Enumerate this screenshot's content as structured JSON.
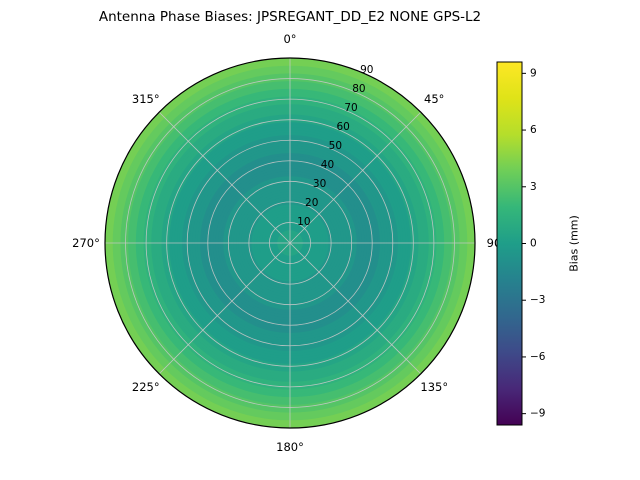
{
  "title": "Antenna Phase Biases: JPSREGANT_DD_E2 NONE GPS-L2",
  "colors": {
    "background": "#ffffff",
    "grid_line": "#c8c8c8",
    "outline": "#000000",
    "text": "#000000"
  },
  "chart_data": {
    "type": "heatmap",
    "subtype": "polar-filled-contour",
    "title": "Antenna Phase Biases: JPSREGANT_DD_E2 NONE GPS-L2",
    "angular_ticks": [
      {
        "deg": 0,
        "label": "0°"
      },
      {
        "deg": 45,
        "label": "45°"
      },
      {
        "deg": 90,
        "label": "90"
      },
      {
        "deg": 135,
        "label": "135°"
      },
      {
        "deg": 180,
        "label": "180°"
      },
      {
        "deg": 225,
        "label": "225°"
      },
      {
        "deg": 270,
        "label": "270°"
      },
      {
        "deg": 315,
        "label": "315°"
      }
    ],
    "radial_ticks": {
      "values": [
        10,
        20,
        30,
        40,
        50,
        60,
        70,
        80,
        90
      ],
      "labels": [
        "10",
        "20",
        "30",
        "40",
        "50",
        "60",
        "70",
        "80",
        "90"
      ],
      "azimuth_deg": 22.5,
      "max": 90
    },
    "grid": true,
    "legend_position": "right-colorbar",
    "colormap": "viridis",
    "colormap_stops": [
      [
        0.0,
        "#440154"
      ],
      [
        0.1,
        "#482878"
      ],
      [
        0.2,
        "#3e4a89"
      ],
      [
        0.3,
        "#31688e"
      ],
      [
        0.4,
        "#26828e"
      ],
      [
        0.5,
        "#1f9e89"
      ],
      [
        0.6,
        "#35b779"
      ],
      [
        0.7,
        "#6ece58"
      ],
      [
        0.8,
        "#b5de2b"
      ],
      [
        0.9,
        "#dfe318"
      ],
      [
        1.0,
        "#fde725"
      ]
    ],
    "colorbar": {
      "label": "Bias (mm)",
      "tick_values": [
        9,
        6,
        3,
        0,
        -3,
        -6,
        -9
      ],
      "tick_labels": [
        "9",
        "6",
        "3",
        "0",
        "−3",
        "−6",
        "−9"
      ],
      "vmin": -9.6,
      "vmax": 9.6
    },
    "bias_profile": {
      "zenith_deg": [
        0,
        10,
        20,
        30,
        40,
        50,
        60,
        70,
        80,
        90
      ],
      "bias_mm": [
        0.5,
        0.1,
        -0.3,
        -0.7,
        -0.9,
        -0.5,
        0.4,
        1.6,
        3.0,
        4.3
      ]
    }
  }
}
